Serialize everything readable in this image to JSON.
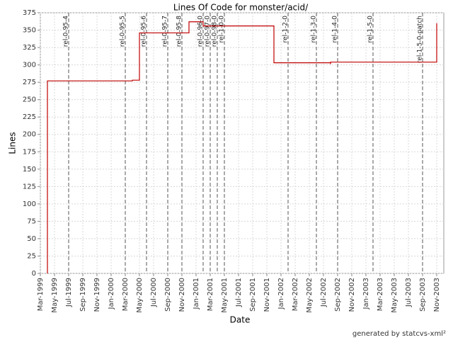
{
  "chart_data": {
    "type": "line",
    "title": "Lines Of Code for monster/acid/",
    "x_label": "Date",
    "y_label": "Lines",
    "footer": "generated by statcvs-xml²",
    "step": true,
    "grid": true,
    "color": "#c00000",
    "x": [
      "1999-04",
      "1999-04",
      "2000-04",
      "2000-05",
      "2000-05",
      "2000-12",
      "2001-02",
      "2001-12",
      "2002-08",
      "2002-08",
      "2003-11",
      "2003-11"
    ],
    "values": [
      0,
      277,
      278,
      337,
      346,
      362,
      356,
      303,
      301,
      304,
      304,
      360
    ],
    "xlim": [
      "1999-03",
      "2003-12"
    ],
    "xticks": [
      {
        "value": "1999-03",
        "label": "Mar-1999"
      },
      {
        "value": "1999-05",
        "label": "May-1999"
      },
      {
        "value": "1999-07",
        "label": "Jul-1999"
      },
      {
        "value": "1999-09",
        "label": "Sep-1999"
      },
      {
        "value": "1999-11",
        "label": "Nov-1999"
      },
      {
        "value": "2000-01",
        "label": "Jan-2000"
      },
      {
        "value": "2000-03",
        "label": "Mar-2000"
      },
      {
        "value": "2000-05",
        "label": "May-2000"
      },
      {
        "value": "2000-07",
        "label": "Jul-2000"
      },
      {
        "value": "2000-09",
        "label": "Sep-2000"
      },
      {
        "value": "2000-11",
        "label": "Nov-2000"
      },
      {
        "value": "2001-01",
        "label": "Jan-2001"
      },
      {
        "value": "2001-03",
        "label": "Mar-2001"
      },
      {
        "value": "2001-05",
        "label": "May-2001"
      },
      {
        "value": "2001-07",
        "label": "Jul-2001"
      },
      {
        "value": "2001-09",
        "label": "Sep-2001"
      },
      {
        "value": "2001-11",
        "label": "Nov-2001"
      },
      {
        "value": "2002-01",
        "label": "Jan-2002"
      },
      {
        "value": "2002-03",
        "label": "Mar-2002"
      },
      {
        "value": "2002-05",
        "label": "May-2002"
      },
      {
        "value": "2002-07",
        "label": "Jul-2002"
      },
      {
        "value": "2002-09",
        "label": "Sep-2002"
      },
      {
        "value": "2002-11",
        "label": "Nov-2002"
      },
      {
        "value": "2003-01",
        "label": "Jan-2003"
      },
      {
        "value": "2003-03",
        "label": "Mar-2003"
      },
      {
        "value": "2003-05",
        "label": "May-2003"
      },
      {
        "value": "2003-07",
        "label": "Jul-2003"
      },
      {
        "value": "2003-09",
        "label": "Sep-2003"
      },
      {
        "value": "2003-11",
        "label": "Nov-2003"
      }
    ],
    "ylim": [
      0,
      375
    ],
    "yticks": [
      0,
      25,
      50,
      75,
      100,
      125,
      150,
      175,
      200,
      225,
      250,
      275,
      300,
      325,
      350,
      375
    ],
    "annotations": [
      {
        "label": "rel-0-95-4",
        "x": "1999-07"
      },
      {
        "label": "rel-0-95-5",
        "x": "2000-03"
      },
      {
        "label": "rel-0-95-6",
        "x": "2000-06"
      },
      {
        "label": "rel-0-95-7",
        "x": "2000-09"
      },
      {
        "label": "rel-0-95-8",
        "x": "2000-11"
      },
      {
        "label": "rel-0-96-0",
        "x": "2001-02"
      },
      {
        "label": "rel-0-97-0",
        "x": "2001-03"
      },
      {
        "label": "rel-0-98-0",
        "x": "2001-04"
      },
      {
        "label": "rel-1-0-0",
        "x": "2001-05"
      },
      {
        "label": "rel-1-2-0",
        "x": "2002-02"
      },
      {
        "label": "rel-1-3-0",
        "x": "2002-06"
      },
      {
        "label": "rel-1-4-0",
        "x": "2002-09"
      },
      {
        "label": "rel-1-5-0",
        "x": "2003-02"
      },
      {
        "label": "rel-1-5-0-patch",
        "x": "2003-09"
      }
    ]
  }
}
